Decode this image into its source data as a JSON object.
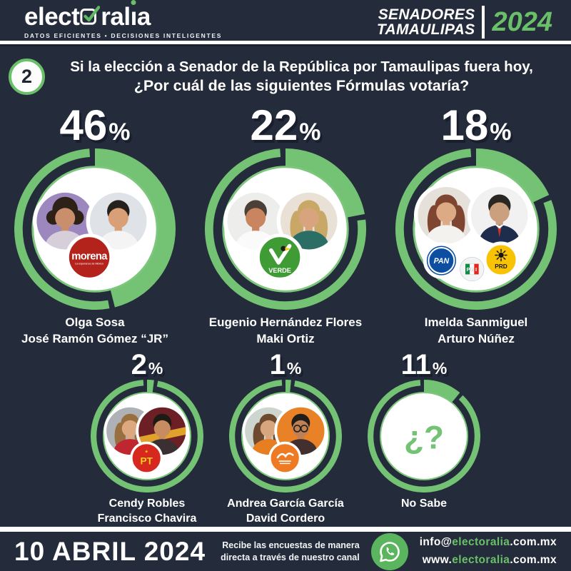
{
  "colors": {
    "background": "#242b3a",
    "green": "#74c274",
    "accent_green": "#6abf69",
    "white": "#ffffff"
  },
  "header": {
    "logo": {
      "part1": "elect",
      "part2": "ral",
      "idot": "ı",
      "part3": "a",
      "tagline": "DATOS EFICIENTES • DECISIONES INTELIGENTES"
    },
    "title_line1": "SENADORES",
    "title_line2": "TAMAULIPAS",
    "year": "2024"
  },
  "question": {
    "number": "2",
    "line1": "Si la elección a Senador de la República por Tamaulipas fuera hoy,",
    "line2": "¿Por cuál de las siguientes Fórmulas votaría?"
  },
  "chart_data": {
    "type": "pie",
    "subtype": "donut-grid",
    "title": "Si la elección a Senador de la República por Tamaulipas fuera hoy, ¿Por cuál de las siguientes Fórmulas votaría?",
    "unit": "%",
    "legend_position": "none",
    "items": [
      {
        "value": 46,
        "size": "large",
        "parties": [
          "morena"
        ],
        "candidates": [
          {
            "name": "Olga Sosa",
            "avatar": {
              "bg": "#9c87bf",
              "skin": "#c98f6d",
              "hair": "#2e2117",
              "shirt": "#d6cfda",
              "style": "curly"
            }
          },
          {
            "name": "José Ramón Gómez “JR”",
            "avatar": {
              "bg": "#dfe2e6",
              "skin": "#d9a077",
              "hair": "#26211c",
              "shirt": "#f4f4f4",
              "style": "short"
            }
          }
        ]
      },
      {
        "value": 22,
        "size": "large",
        "parties": [
          "VERDE"
        ],
        "candidates": [
          {
            "name": "Eugenio Hernández Flores",
            "avatar": {
              "bg": "#ededec",
              "skin": "#c8855f",
              "hair": "#4a4038",
              "shirt": "#fafafa",
              "style": "short"
            }
          },
          {
            "name": "Maki Ortiz",
            "avatar": {
              "bg": "#e9e1d6",
              "skin": "#d8a47e",
              "hair": "#c9a867",
              "shirt": "#2a6e66",
              "style": "long"
            }
          }
        ]
      },
      {
        "value": 18,
        "size": "large",
        "parties": [
          "PAN",
          "PRI",
          "PRD"
        ],
        "candidates": [
          {
            "name": "Imelda Sanmiguel",
            "avatar": {
              "bg": "#e5e0da",
              "skin": "#dcab85",
              "hair": "#7e4630",
              "shirt": "#f4f2ef",
              "style": "long"
            }
          },
          {
            "name": "Arturo Núñez",
            "avatar": {
              "bg": "#f1f1f1",
              "skin": "#caa07e",
              "hair": "#2a2622",
              "shirt": "#1e2c4e",
              "style": "short",
              "tie": "#c6342c"
            }
          }
        ]
      },
      {
        "value": 2,
        "size": "small",
        "parties": [
          "PT"
        ],
        "candidates": [
          {
            "name": "Cendy Robles",
            "avatar": {
              "bg": "#aeb2b7",
              "skin": "#dba87f",
              "hair": "#9a6f3f",
              "shirt": "#bf2630",
              "style": "long"
            }
          },
          {
            "name": "Francisco Chavira",
            "avatar": {
              "bg": "#6c2026",
              "skin": "#c78c60",
              "hair": "#1e1a16",
              "shirt": "#3a2f33",
              "style": "short",
              "band": "#e0a22a"
            }
          }
        ]
      },
      {
        "value": 1,
        "size": "small",
        "parties": [
          "MC"
        ],
        "candidates": [
          {
            "name": "Andrea García García",
            "avatar": {
              "bg": "#ccd6cf",
              "skin": "#d8a67e",
              "hair": "#6e4a2e",
              "shirt": "#e87e22",
              "style": "long"
            }
          },
          {
            "name": "David Cordero",
            "avatar": {
              "bg": "#e98127",
              "skin": "#c08055",
              "hair": "#211d1a",
              "shirt": "#43302e",
              "style": "short",
              "glasses": true
            }
          }
        ]
      },
      {
        "value": 11,
        "size": "small",
        "parties": [],
        "label": "No Sabe",
        "icon": "¿?"
      }
    ],
    "party_styles": {
      "morena": {
        "label": "morena",
        "tagline": "La esperanza de México",
        "color": "#b3231b",
        "text_color": "#ffffff"
      },
      "VERDE": {
        "label": "VERDE",
        "color": "#3f9c35",
        "text_color": "#ffffff"
      },
      "PAN": {
        "label": "PAN",
        "color": "#0b4ea2",
        "text_color": "#ffffff"
      },
      "PRI": {
        "label": "PRI",
        "colors": [
          "#0c8f43",
          "#fdfdfd",
          "#e42518"
        ],
        "ring": "#aab1b7",
        "text_color": "#ffffff"
      },
      "PRD": {
        "label": "PRD",
        "color": "#f8c304",
        "text_color": "#141414"
      },
      "PT": {
        "label": "PT",
        "color": "#d6281e",
        "text_color": "#f7d117"
      },
      "MC": {
        "label": "",
        "color": "#ee7b23",
        "text_color": "#ffffff"
      }
    }
  },
  "footer": {
    "date": "10 ABRIL 2024",
    "promo_line1": "Recibe las encuestas de manera",
    "promo_line2": "directa a través de nuestro canal",
    "email": {
      "pre": "info@",
      "brand": "electoralia",
      "suf": ".com.mx"
    },
    "website": {
      "pre": "www.",
      "brand": "electoralia",
      "suf": ".com.mx"
    }
  }
}
